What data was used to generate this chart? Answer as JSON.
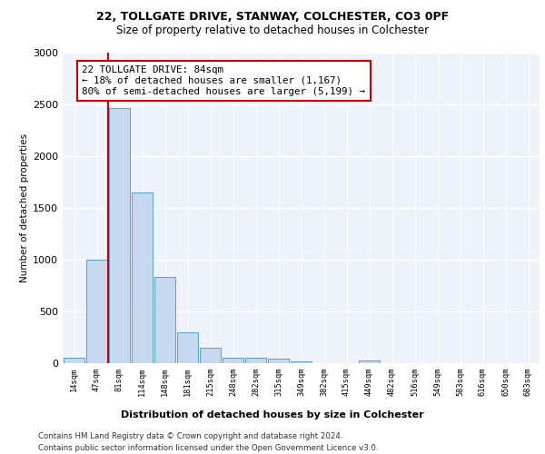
{
  "title_line1": "22, TOLLGATE DRIVE, STANWAY, COLCHESTER, CO3 0PF",
  "title_line2": "Size of property relative to detached houses in Colchester",
  "xlabel": "Distribution of detached houses by size in Colchester",
  "ylabel": "Number of detached properties",
  "footer_line1": "Contains HM Land Registry data © Crown copyright and database right 2024.",
  "footer_line2": "Contains public sector information licensed under the Open Government Licence v3.0.",
  "annotation_line1": "22 TOLLGATE DRIVE: 84sqm",
  "annotation_line2": "← 18% of detached houses are smaller (1,167)",
  "annotation_line3": "80% of semi-detached houses are larger (5,199) →",
  "bar_labels": [
    "14sqm",
    "47sqm",
    "81sqm",
    "114sqm",
    "148sqm",
    "181sqm",
    "215sqm",
    "248sqm",
    "282sqm",
    "315sqm",
    "349sqm",
    "382sqm",
    "415sqm",
    "449sqm",
    "482sqm",
    "516sqm",
    "549sqm",
    "583sqm",
    "616sqm",
    "650sqm",
    "683sqm"
  ],
  "bar_values": [
    55,
    1000,
    2460,
    1650,
    830,
    300,
    150,
    55,
    55,
    40,
    20,
    0,
    0,
    30,
    0,
    0,
    0,
    0,
    0,
    0,
    0
  ],
  "bar_color": "#c5d8f0",
  "bar_edge_color": "#5a9fd4",
  "red_line_color": "#cc0000",
  "background_color": "#eef2fa",
  "ylim": [
    0,
    3000
  ],
  "yticks": [
    0,
    500,
    1000,
    1500,
    2000,
    2500,
    3000
  ]
}
